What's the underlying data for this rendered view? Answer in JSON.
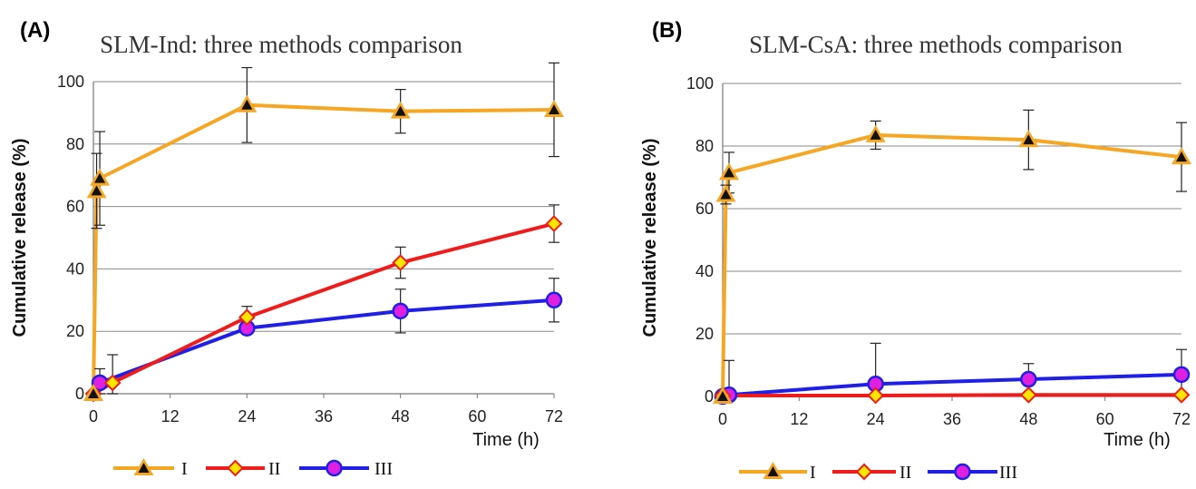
{
  "chart_data": [
    {
      "panel_label": "(A)",
      "title": "SLM-Ind: three methods comparison",
      "type": "line",
      "xlabel": "Time (h)",
      "ylabel": "Cumulative release (%)",
      "xlim": [
        0,
        72
      ],
      "ylim": [
        0,
        100
      ],
      "xticks": [
        0,
        12,
        24,
        36,
        48,
        60,
        72
      ],
      "yticks": [
        0,
        20,
        40,
        60,
        80,
        100
      ],
      "grid": "horizontal",
      "legend_position": "bottom",
      "series": [
        {
          "name": "I",
          "color": "#f5a623",
          "marker": "triangle",
          "x": [
            0,
            0.5,
            1,
            24,
            48,
            72
          ],
          "y": [
            0,
            65,
            69,
            92.5,
            90.5,
            91
          ],
          "err": [
            0,
            12,
            15,
            12,
            7,
            15
          ]
        },
        {
          "name": "II",
          "color": "#ee1c1c",
          "marker": "diamond",
          "x": [
            0,
            3,
            24,
            48,
            72
          ],
          "y": [
            0,
            3.5,
            24.5,
            42,
            54.5
          ],
          "err": [
            0,
            9,
            3.5,
            5,
            6
          ]
        },
        {
          "name": "III",
          "color": "#1f1fe6",
          "marker": "circle",
          "x": [
            1,
            24,
            48,
            72
          ],
          "y": [
            3.5,
            21,
            26.5,
            30
          ],
          "err": [
            4.5,
            0,
            7,
            7
          ]
        }
      ]
    },
    {
      "panel_label": "(B)",
      "title": "SLM-CsA: three methods comparison",
      "type": "line",
      "xlabel": "Time (h)",
      "ylabel": "Cumulative release (%)",
      "xlim": [
        0,
        72
      ],
      "ylim": [
        0,
        100
      ],
      "xticks": [
        0,
        12,
        24,
        36,
        48,
        60,
        72
      ],
      "yticks": [
        0,
        20,
        40,
        60,
        80,
        100
      ],
      "grid": "horizontal",
      "legend_position": "bottom",
      "series": [
        {
          "name": "I",
          "color": "#f5a623",
          "marker": "triangle",
          "x": [
            0,
            0.5,
            1,
            24,
            48,
            72
          ],
          "y": [
            0,
            64.5,
            71.5,
            83.5,
            82,
            76.5
          ],
          "err": [
            0,
            3,
            6.5,
            4.5,
            9.5,
            11
          ]
        },
        {
          "name": "II",
          "color": "#ee1c1c",
          "marker": "diamond",
          "x": [
            0,
            24,
            48,
            72
          ],
          "y": [
            0.3,
            0.3,
            0.5,
            0.5
          ],
          "err": [
            0,
            0,
            0,
            0
          ]
        },
        {
          "name": "III",
          "color": "#1f1fe6",
          "marker": "circle",
          "x": [
            0,
            1,
            24,
            48,
            72
          ],
          "y": [
            0,
            0.5,
            4,
            5.5,
            7
          ],
          "err": [
            0,
            11,
            13,
            5,
            8
          ]
        }
      ]
    }
  ]
}
